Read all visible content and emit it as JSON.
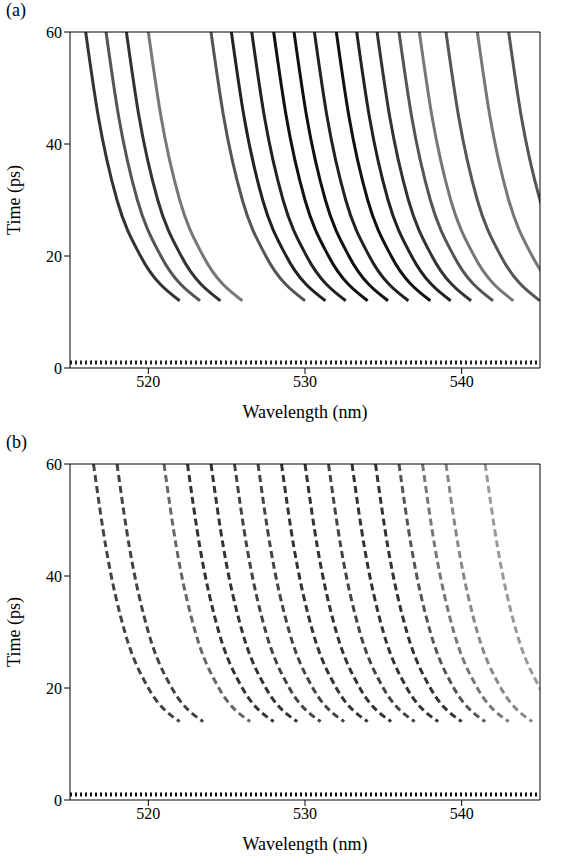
{
  "chart_data": [
    {
      "type": "line",
      "label": "(a)",
      "x_label": "Wavelength (nm)",
      "y_label": "Time (ps)",
      "xlim": [
        515,
        545
      ],
      "xticks": [
        520,
        530,
        540
      ],
      "ylim": [
        0,
        60
      ],
      "yticks": [
        0,
        20,
        40,
        60
      ],
      "series": [
        {
          "color": "#222222",
          "line_style": "dotted",
          "x": [
            515,
            545
          ],
          "y": [
            1,
            1
          ]
        },
        {
          "color": "#333333",
          "line_style": "solid",
          "x": [
            516,
            516.8,
            518,
            519.5,
            522
          ],
          "y": [
            60,
            45,
            30,
            20,
            12
          ]
        },
        {
          "color": "#555555",
          "line_style": "solid",
          "x": [
            517.3,
            518.1,
            519.3,
            520.8,
            523.3
          ],
          "y": [
            60,
            45,
            30,
            20,
            12
          ]
        },
        {
          "color": "#333333",
          "line_style": "solid",
          "x": [
            518.6,
            519.4,
            520.6,
            522.1,
            524.6
          ],
          "y": [
            60,
            45,
            30,
            20,
            12
          ]
        },
        {
          "color": "#777777",
          "line_style": "solid",
          "x": [
            520,
            520.8,
            522,
            523.5,
            526
          ],
          "y": [
            60,
            45,
            30,
            20,
            12
          ]
        },
        {
          "color": "#555555",
          "line_style": "solid",
          "x": [
            524,
            524.8,
            526,
            527.5,
            530
          ],
          "y": [
            60,
            45,
            30,
            20,
            12
          ]
        },
        {
          "color": "#222222",
          "line_style": "solid",
          "x": [
            525.3,
            526.1,
            527.3,
            528.8,
            531.3
          ],
          "y": [
            60,
            45,
            30,
            20,
            12
          ]
        },
        {
          "color": "#222222",
          "line_style": "solid",
          "x": [
            526.6,
            527.4,
            528.6,
            530.1,
            532.6
          ],
          "y": [
            60,
            45,
            30,
            20,
            12
          ]
        },
        {
          "color": "#111111",
          "line_style": "solid",
          "x": [
            528,
            528.8,
            530,
            531.5,
            534
          ],
          "y": [
            60,
            45,
            30,
            20,
            12
          ]
        },
        {
          "color": "#111111",
          "line_style": "solid",
          "x": [
            529.3,
            530.1,
            531.3,
            532.8,
            535.3
          ],
          "y": [
            60,
            45,
            30,
            20,
            12
          ]
        },
        {
          "color": "#222222",
          "line_style": "solid",
          "x": [
            530.6,
            531.4,
            532.6,
            534.1,
            536.6
          ],
          "y": [
            60,
            45,
            30,
            20,
            12
          ]
        },
        {
          "color": "#111111",
          "line_style": "solid",
          "x": [
            532,
            532.8,
            534,
            535.5,
            538
          ],
          "y": [
            60,
            45,
            30,
            20,
            12
          ]
        },
        {
          "color": "#222222",
          "line_style": "solid",
          "x": [
            533.3,
            534.1,
            535.3,
            536.8,
            539.3
          ],
          "y": [
            60,
            45,
            30,
            20,
            12
          ]
        },
        {
          "color": "#333333",
          "line_style": "solid",
          "x": [
            534.6,
            535.4,
            536.6,
            538.1,
            540.6
          ],
          "y": [
            60,
            45,
            30,
            20,
            12
          ]
        },
        {
          "color": "#555555",
          "line_style": "solid",
          "x": [
            536,
            536.8,
            538,
            539.5,
            542
          ],
          "y": [
            60,
            45,
            30,
            20,
            12
          ]
        },
        {
          "color": "#777777",
          "line_style": "solid",
          "x": [
            537.3,
            538.1,
            539.3,
            540.8,
            543.3
          ],
          "y": [
            60,
            45,
            30,
            20,
            12
          ]
        },
        {
          "color": "#555555",
          "line_style": "solid",
          "x": [
            539,
            539.8,
            541,
            542.5,
            545
          ],
          "y": [
            60,
            45,
            30,
            20,
            12
          ]
        },
        {
          "color": "#777777",
          "line_style": "solid",
          "x": [
            541,
            541.8,
            543,
            544.5,
            547
          ],
          "y": [
            60,
            45,
            30,
            20,
            12
          ]
        },
        {
          "color": "#555555",
          "line_style": "solid",
          "x": [
            543,
            543.8,
            545,
            546.5,
            549
          ],
          "y": [
            60,
            45,
            30,
            20,
            12
          ]
        }
      ]
    },
    {
      "type": "line",
      "label": "(b)",
      "x_label": "Wavelength (nm)",
      "y_label": "Time (ps)",
      "xlim": [
        515,
        545
      ],
      "xticks": [
        520,
        530,
        540
      ],
      "ylim": [
        0,
        60
      ],
      "yticks": [
        0,
        20,
        40,
        60
      ],
      "series": [
        {
          "color": "#111111",
          "line_style": "dotted",
          "x": [
            515,
            545
          ],
          "y": [
            1,
            1
          ]
        },
        {
          "color": "#444444",
          "line_style": "dashed",
          "x": [
            516.5,
            517.3,
            518.5,
            520,
            522
          ],
          "y": [
            60,
            45,
            30,
            20,
            14
          ]
        },
        {
          "color": "#444444",
          "line_style": "dashed",
          "x": [
            518,
            518.8,
            520,
            521.5,
            523.5
          ],
          "y": [
            60,
            45,
            30,
            20,
            14
          ]
        },
        {
          "color": "#666666",
          "line_style": "dashed",
          "x": [
            521,
            521.8,
            523,
            524.5,
            526.5
          ],
          "y": [
            60,
            45,
            30,
            20,
            14
          ]
        },
        {
          "color": "#333333",
          "line_style": "dashed",
          "x": [
            522.5,
            523.3,
            524.5,
            526,
            528
          ],
          "y": [
            60,
            45,
            30,
            20,
            14
          ]
        },
        {
          "color": "#333333",
          "line_style": "dashed",
          "x": [
            524,
            524.8,
            526,
            527.5,
            529.5
          ],
          "y": [
            60,
            45,
            30,
            20,
            14
          ]
        },
        {
          "color": "#444444",
          "line_style": "dashed",
          "x": [
            525.5,
            526.3,
            527.5,
            529,
            531
          ],
          "y": [
            60,
            45,
            30,
            20,
            14
          ]
        },
        {
          "color": "#444444",
          "line_style": "dashed",
          "x": [
            527,
            527.8,
            529,
            530.5,
            532.5
          ],
          "y": [
            60,
            45,
            30,
            20,
            14
          ]
        },
        {
          "color": "#333333",
          "line_style": "dashed",
          "x": [
            528.5,
            529.3,
            530.5,
            532,
            534
          ],
          "y": [
            60,
            45,
            30,
            20,
            14
          ]
        },
        {
          "color": "#333333",
          "line_style": "dashed",
          "x": [
            530,
            530.8,
            532,
            533.5,
            535.5
          ],
          "y": [
            60,
            45,
            30,
            20,
            14
          ]
        },
        {
          "color": "#444444",
          "line_style": "dashed",
          "x": [
            531.5,
            532.3,
            533.5,
            535,
            537
          ],
          "y": [
            60,
            45,
            30,
            20,
            14
          ]
        },
        {
          "color": "#333333",
          "line_style": "dashed",
          "x": [
            533,
            533.8,
            535,
            536.5,
            538.5
          ],
          "y": [
            60,
            45,
            30,
            20,
            14
          ]
        },
        {
          "color": "#333333",
          "line_style": "dashed",
          "x": [
            534.5,
            535.3,
            536.5,
            538,
            540
          ],
          "y": [
            60,
            45,
            30,
            20,
            14
          ]
        },
        {
          "color": "#555555",
          "line_style": "dashed",
          "x": [
            536,
            536.8,
            538,
            539.5,
            541.5
          ],
          "y": [
            60,
            45,
            30,
            20,
            14
          ]
        },
        {
          "color": "#777777",
          "line_style": "dashed",
          "x": [
            537.5,
            538.3,
            539.5,
            541,
            543
          ],
          "y": [
            60,
            45,
            30,
            20,
            14
          ]
        },
        {
          "color": "#888888",
          "line_style": "dashed",
          "x": [
            539,
            539.8,
            541,
            542.5,
            544.5
          ],
          "y": [
            60,
            45,
            30,
            20,
            14
          ]
        },
        {
          "color": "#999999",
          "line_style": "dashed",
          "x": [
            541.5,
            542.3,
            543.5,
            545,
            547
          ],
          "y": [
            60,
            45,
            30,
            20,
            14
          ]
        }
      ]
    }
  ]
}
